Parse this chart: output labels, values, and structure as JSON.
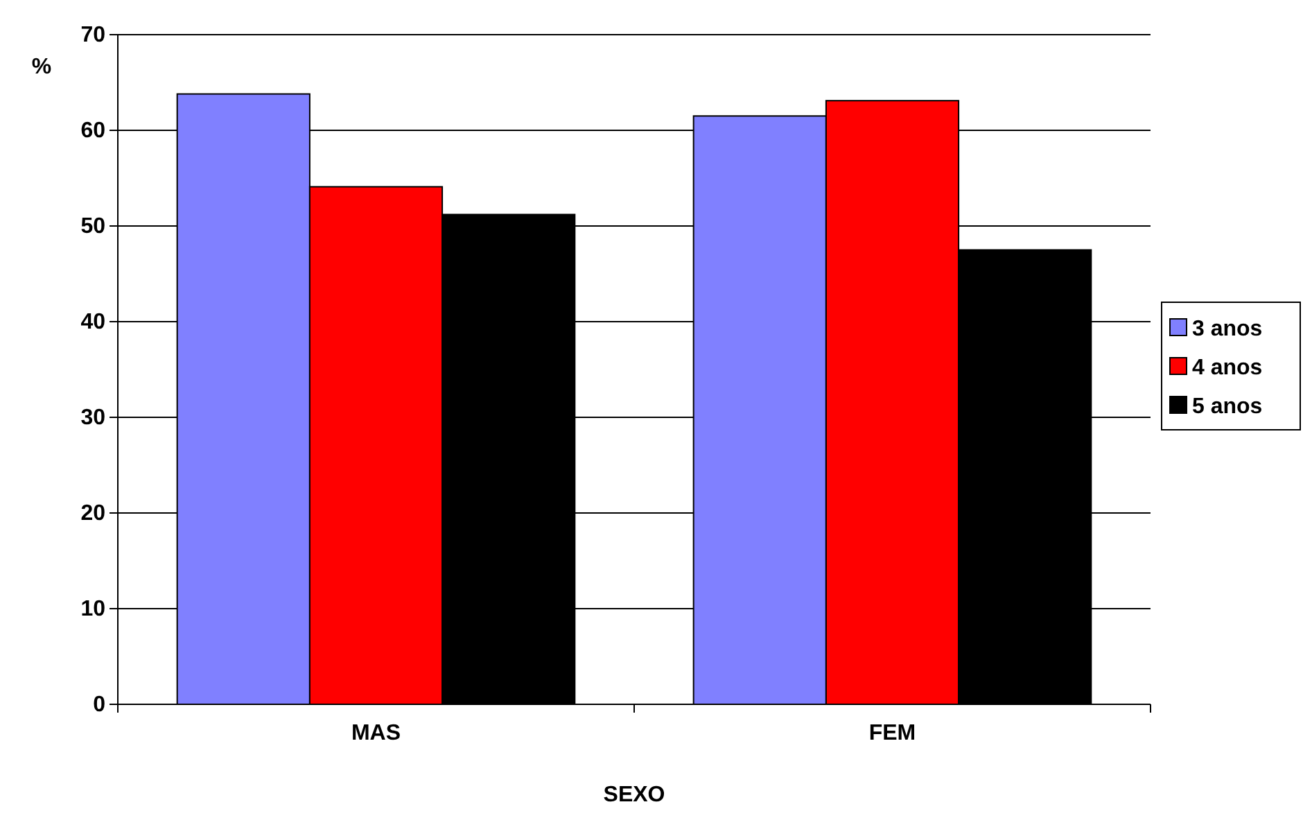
{
  "chart_data": {
    "type": "bar",
    "xlabel": "SEXO",
    "ylabel": "%",
    "categories": [
      "MAS",
      "FEM"
    ],
    "series": [
      {
        "name": "3 anos",
        "color": "#8080ff",
        "values": [
          63.8,
          61.5
        ]
      },
      {
        "name": "4 anos",
        "color": "#ff0000",
        "values": [
          54.1,
          63.1
        ]
      },
      {
        "name": "5 anos",
        "color": "#000000",
        "values": [
          51.2,
          47.5
        ]
      }
    ],
    "ylim": [
      0,
      70
    ],
    "yticks": [
      0,
      10,
      20,
      30,
      40,
      50,
      60,
      70
    ],
    "grid": "y",
    "legend": "right"
  }
}
